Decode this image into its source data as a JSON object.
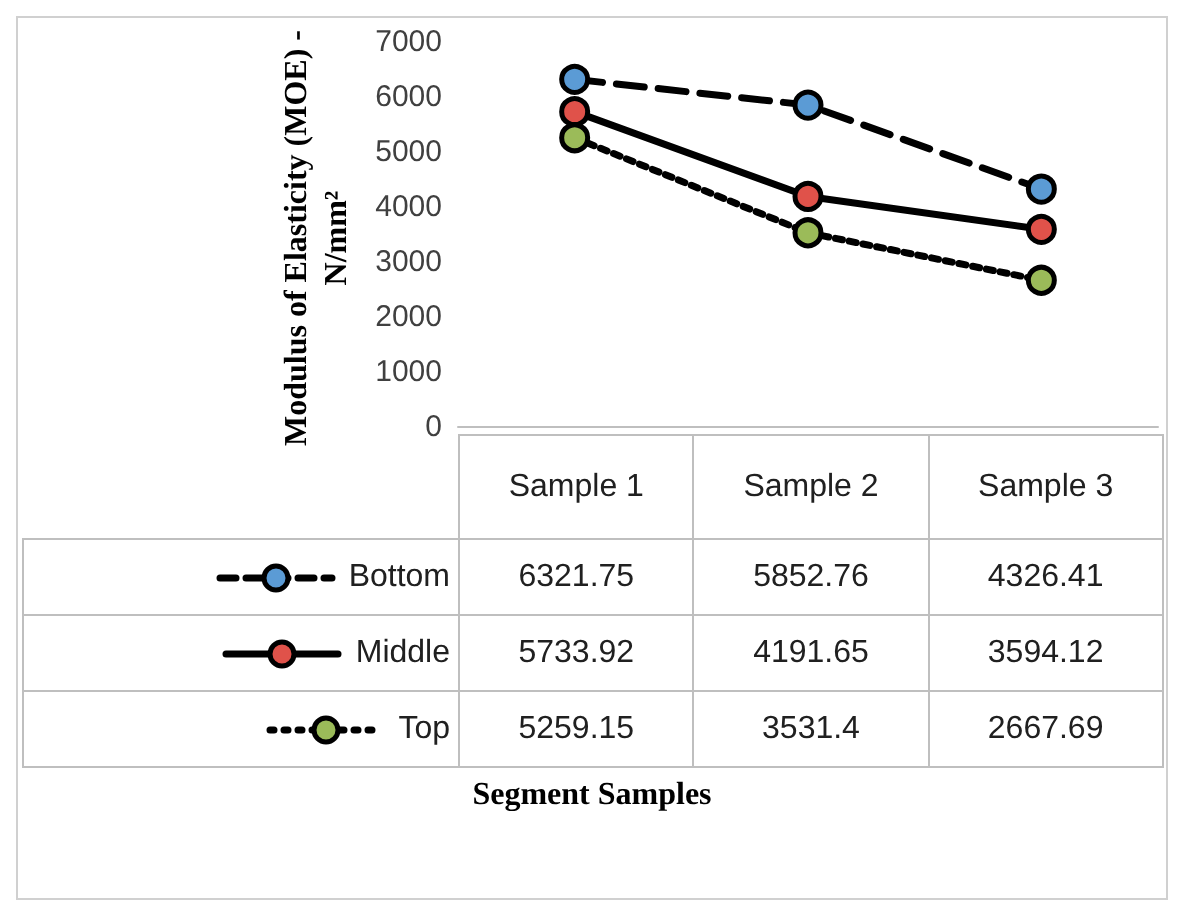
{
  "chart_data": {
    "type": "line",
    "ylabel": "Modulus of Elasticity (MOE) - N/mm²",
    "annotations": [
      "Segment Samples"
    ],
    "categories": [
      "Sample 1",
      "Sample 2",
      "Sample 3"
    ],
    "series": [
      {
        "name": "Bottom",
        "color": "#5b9bd5",
        "line_style": "dashed",
        "values": [
          6321.75,
          5852.76,
          4326.41
        ]
      },
      {
        "name": "Middle",
        "color": "#e0524a",
        "line_style": "solid",
        "values": [
          5733.92,
          4191.65,
          3594.12
        ]
      },
      {
        "name": "Top",
        "color": "#9bbb59",
        "line_style": "dotted",
        "values": [
          5259.15,
          3531.4,
          2667.69
        ]
      }
    ],
    "ylim": [
      0,
      7000
    ],
    "yticks": [
      0,
      1000,
      2000,
      3000,
      4000,
      5000,
      6000,
      7000
    ],
    "legend": "bottom left",
    "marker": "circle",
    "data_labels": true
  }
}
